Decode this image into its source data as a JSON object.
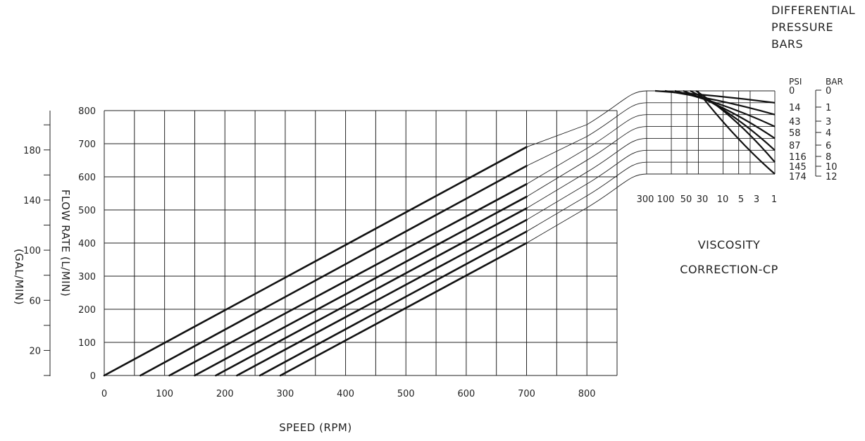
{
  "chart_data": {
    "type": "line",
    "xlabel": "SPEED (RPM)",
    "ylabel": "FLOW RATE (L/MIN)",
    "ylabel_secondary": "(GAL/MIN)",
    "xlim": [
      0,
      850
    ],
    "ylim": [
      0,
      800
    ],
    "x_ticks": [
      "0",
      "100",
      "200",
      "300",
      "400",
      "500",
      "600",
      "700",
      "800"
    ],
    "y_ticks": [
      "0",
      "100",
      "200",
      "300",
      "400",
      "500",
      "600",
      "700",
      "800"
    ],
    "y2_ticks": [
      "20",
      "60",
      "100",
      "140",
      "180"
    ],
    "grid": true,
    "series": [
      {
        "points": [
          [
            0,
            0
          ],
          [
            700,
            690
          ]
        ]
      },
      {
        "points": [
          [
            60,
            0
          ],
          [
            700,
            633
          ]
        ]
      },
      {
        "points": [
          [
            108,
            0
          ],
          [
            700,
            578
          ]
        ]
      },
      {
        "points": [
          [
            150,
            0
          ],
          [
            700,
            540
          ]
        ]
      },
      {
        "points": [
          [
            185,
            0
          ],
          [
            700,
            505
          ]
        ]
      },
      {
        "points": [
          [
            220,
            0
          ],
          [
            700,
            470
          ]
        ]
      },
      {
        "points": [
          [
            258,
            0
          ],
          [
            700,
            435
          ]
        ]
      },
      {
        "points": [
          [
            292,
            0
          ],
          [
            700,
            400
          ]
        ]
      }
    ],
    "viscosity_panel": {
      "title_line1": "VISCOSITY",
      "title_line2": "CORRECTION-CP",
      "x_ticks": [
        "300",
        "100",
        "50",
        "30",
        "10",
        "5",
        "3",
        "1"
      ]
    },
    "pressure_panel": {
      "title_line1": "DIFFERENTIAL",
      "title_line2": "PRESSURE",
      "title_line3": "BARS",
      "psi_header": "PSI",
      "bar_header": "BAR",
      "psi_values": [
        "0",
        "14",
        "43",
        "58",
        "87",
        "116",
        "145",
        "174"
      ],
      "bar_values": [
        "0",
        "1",
        "3",
        "4",
        "6",
        "8",
        "10",
        "12"
      ]
    }
  }
}
